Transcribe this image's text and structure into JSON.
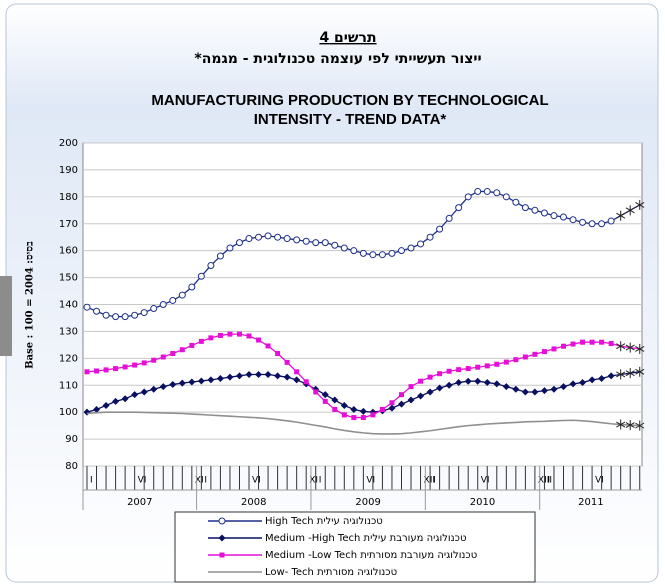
{
  "chart_data": {
    "type": "line",
    "chart_number": "תרשים 4",
    "hebrew_title": "ייצור תעשייתי לפי עוצמה טכנולוגית - מגמה*",
    "title_lines": [
      "MANUFACTURING PRODUCTION BY TECHNOLOGICAL",
      "INTENSITY - TREND DATA*"
    ],
    "y_label": "Base : 100 = 2004 :בסיס",
    "categories": [
      "I",
      null,
      null,
      null,
      null,
      "VI",
      null,
      null,
      null,
      null,
      null,
      "XI",
      "I",
      null,
      null,
      null,
      null,
      "VI",
      null,
      null,
      null,
      null,
      null,
      "XI",
      "I",
      null,
      null,
      null,
      null,
      "VI",
      null,
      null,
      null,
      null,
      null,
      "XII",
      "I",
      null,
      null,
      null,
      null,
      "VI",
      null,
      null,
      null,
      null,
      null,
      "XIII",
      "I",
      null,
      null,
      null,
      null,
      "VI",
      null,
      null,
      null,
      null,
      null
    ],
    "x_groups": [
      "2007",
      "2008",
      "2009",
      "2010",
      "2011"
    ],
    "group_size": 12,
    "asterisk_last": 3,
    "ylim": [
      80,
      200
    ],
    "yticks": [
      80,
      90,
      100,
      110,
      120,
      130,
      140,
      150,
      160,
      170,
      180,
      190,
      200
    ],
    "grid": true,
    "series": [
      {
        "name": "High Tech טכנולוגיה עילית",
        "color": "#1f2f8a",
        "marker": "circle",
        "values": [
          139,
          137.5,
          136,
          135.5,
          135.5,
          136,
          137,
          138.5,
          140,
          141.5,
          143.5,
          146.5,
          150.5,
          154.5,
          158,
          161,
          163,
          164.5,
          165,
          165.5,
          165,
          164.5,
          164,
          163.5,
          163,
          163,
          162,
          161,
          160,
          159,
          158.5,
          158.5,
          159,
          160,
          161,
          162.5,
          165,
          168,
          172,
          176,
          180,
          182,
          182,
          181.5,
          180,
          178,
          176,
          175,
          174,
          173,
          172.5,
          171.5,
          170.5,
          170,
          170,
          171,
          173,
          175,
          177
        ]
      },
      {
        "name": "Medium -High Tech  טכנולוגיה מעורבת עילית",
        "color": "#0a1060",
        "marker": "diamond",
        "values": [
          100,
          101,
          102.5,
          104,
          105,
          106.5,
          107.5,
          108.5,
          109.5,
          110.3,
          110.8,
          111.2,
          111.6,
          112,
          112.5,
          113,
          113.5,
          114,
          114,
          114,
          113.5,
          113,
          112,
          110.5,
          108.5,
          106.5,
          104.5,
          102.5,
          101,
          100.3,
          100,
          100.5,
          101.5,
          103,
          104.5,
          106,
          107.5,
          109,
          110,
          111,
          111.5,
          111.5,
          111,
          110.5,
          109.5,
          108.5,
          107.5,
          107.5,
          108,
          108.5,
          109.5,
          110.5,
          111,
          112,
          112.5,
          113.5,
          114,
          114.5,
          115
        ]
      },
      {
        "name": "Medium -Low Tech  טכנולוגיה מעורבת מסורתית",
        "color": "#e60fd8",
        "marker": "square",
        "values": [
          115,
          115.3,
          115.7,
          116.2,
          116.8,
          117.5,
          118.3,
          119.3,
          120.5,
          121.8,
          123.2,
          124.8,
          126.3,
          127.6,
          128.5,
          129,
          129,
          128.3,
          126.8,
          124.6,
          121.8,
          118.5,
          115,
          111.3,
          107.5,
          104,
          101,
          99,
          98,
          98,
          99,
          101,
          103.5,
          106.5,
          109.5,
          111.5,
          113,
          114.3,
          115.2,
          115.8,
          116.2,
          116.7,
          117.2,
          117.8,
          118.6,
          119.5,
          120.5,
          121.5,
          122.5,
          123.5,
          124.5,
          125.3,
          126,
          126,
          126,
          125.5,
          124.5,
          124,
          123.5
        ]
      },
      {
        "name": "Low- Tech  טכנולוגיה מסורתית",
        "color": "#8f8f8f",
        "marker": "none",
        "values": [
          99.5,
          99.8,
          100,
          100,
          100,
          100,
          99.9,
          99.8,
          99.7,
          99.6,
          99.5,
          99.3,
          99.1,
          98.9,
          98.7,
          98.5,
          98.3,
          98.1,
          97.9,
          97.6,
          97.2,
          96.8,
          96.3,
          95.7,
          95.1,
          94.5,
          93.8,
          93.2,
          92.7,
          92.3,
          92,
          91.9,
          91.9,
          92,
          92.3,
          92.7,
          93.1,
          93.6,
          94.1,
          94.6,
          95,
          95.3,
          95.6,
          95.8,
          96,
          96.2,
          96.4,
          96.5,
          96.6,
          96.8,
          96.9,
          97,
          96.8,
          96.5,
          96.1,
          95.7,
          95.4,
          95.2,
          95
        ]
      }
    ]
  }
}
